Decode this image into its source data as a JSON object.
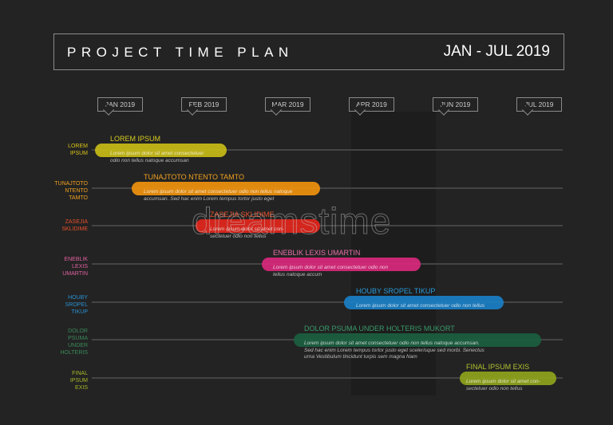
{
  "header": {
    "title": "PROJECT TIME PLAN",
    "range": "JAN - JUL 2019"
  },
  "months": [
    "JAN 2019",
    "FEB 2019",
    "MAR 2019",
    "APR 2019",
    "JUN 2019",
    "JUL 2019"
  ],
  "watermark": "dreamstime",
  "tasks": [
    {
      "label": "LOREM IPSUM",
      "row_label": [
        "LOREM",
        "IPSUM"
      ],
      "color": "#c9bc17",
      "desc": [
        "Lorem ipsum dolor sit amet consectetuer",
        "odio non tellus natoque accumsan"
      ]
    },
    {
      "label": "TUNAJTOTO NTENTO TAMTO",
      "row_label": [
        "TUNAJTOTO",
        "NTENTO",
        "TAMTO"
      ],
      "color": "#f0920e",
      "desc": [
        "Lorem ipsum dolor sit amet consectetuer odio non tellus natoque",
        "accumsan. Sed hac enim Lorem tempus tortor justo eget"
      ]
    },
    {
      "label": "ZASEJIA SKLIDIME",
      "row_label": [
        "ZASEJIA",
        "SKLIDIME"
      ],
      "color": "#e3261c",
      "desc": [
        "Lorem ipsum dolor sit amet con-",
        "sectetuer odio non tellus"
      ]
    },
    {
      "label": "ENEBLIK LEXIS UMARTIN",
      "row_label": [
        "ENEBLIK",
        "LEXIS",
        "UMARTIN"
      ],
      "color": "#d9287c",
      "desc": [
        "Lorem ipsum dolor sit amet consectetuer odio non",
        "tellus natoque accum"
      ]
    },
    {
      "label": "HOUBY SROPEL TIKUP",
      "row_label": [
        "HOUBY",
        "SROPEL",
        "TIKUP"
      ],
      "color": "#1a7fc6",
      "desc": [
        "Lorem ipsum dolor sit amet consectetuer odio non tellus"
      ]
    },
    {
      "label": "DOLOR PSUMA UNDER HOLTERIS MUKORT",
      "row_label": [
        "DOLOR",
        "PSUMA",
        "UNDER",
        "HOLTERIS"
      ],
      "color": "#1b6040",
      "desc": [
        "Lorem ipsum dolor sit amet consectetuer odio non tellus natoque accumsan.",
        "Sed hac enim Lorem tempus tortor justo eget scelerisque sed morbi. Senectus",
        "urna Vestibulum tincidunt turpis sem magna Nam"
      ]
    },
    {
      "label": "FINAL IPSUM EXIS",
      "row_label": [
        "FINAL",
        "IPSUM",
        "EXIS"
      ],
      "color": "#8fa41c",
      "desc": [
        "Lorem ipsum dolor sit amet con-",
        "sectetuer odio non tellus"
      ]
    }
  ]
}
